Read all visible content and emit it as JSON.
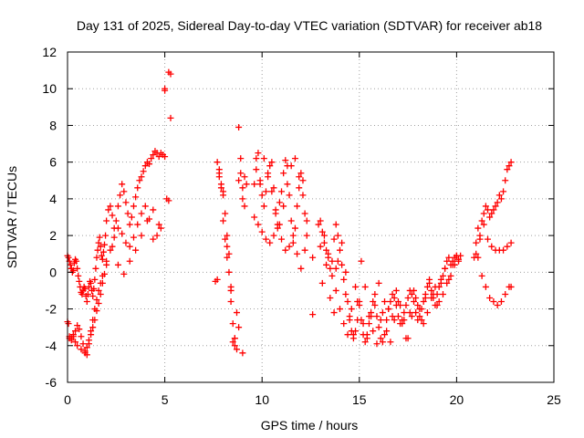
{
  "chart_data": {
    "type": "scatter",
    "title": "Day 131 of 2025, Sidereal Day-to-day VTEC variation (SDTVAR) for receiver ab18",
    "xlabel": "GPS time / hours",
    "ylabel": "SDTVAR / TECUs",
    "xlim": [
      0,
      25
    ],
    "ylim": [
      -6,
      12
    ],
    "xticks": [
      0,
      5,
      10,
      15,
      20,
      25
    ],
    "yticks": [
      -6,
      -4,
      -2,
      0,
      2,
      4,
      6,
      8,
      10,
      12
    ],
    "xtick_labels": [
      "0",
      "5",
      "10",
      "15",
      "20",
      "25"
    ],
    "ytick_labels": [
      "-6",
      "-4",
      "-2",
      "0",
      "2",
      "4",
      "6",
      "8",
      "10",
      "12"
    ],
    "grid": true,
    "marker": "+",
    "color": "#ff0000",
    "series": [
      {
        "name": "SDTVAR",
        "x": [
          0.0,
          0.05,
          0.1,
          0.15,
          0.2,
          0.25,
          0.3,
          0.35,
          0.4,
          0.45,
          0.5,
          0.55,
          0.6,
          0.65,
          0.7,
          0.75,
          0.8,
          0.85,
          0.9,
          0.95,
          1.0,
          1.05,
          1.1,
          1.15,
          1.2,
          1.25,
          1.3,
          1.35,
          1.4,
          1.45,
          1.5,
          1.55,
          1.6,
          1.65,
          1.7,
          1.75,
          1.8,
          1.85,
          1.9,
          1.95,
          2.0,
          2.1,
          2.2,
          2.3,
          2.4,
          2.5,
          2.6,
          2.7,
          2.8,
          2.9,
          3.0,
          3.1,
          3.2,
          3.3,
          3.4,
          3.5,
          3.6,
          3.7,
          3.8,
          3.9,
          4.0,
          4.1,
          4.2,
          4.3,
          4.4,
          4.5,
          4.6,
          4.7,
          4.8,
          4.9,
          5.0,
          5.1,
          5.2,
          5.3,
          0.0,
          0.1,
          0.2,
          0.3,
          0.4,
          0.5,
          0.6,
          0.7,
          0.8,
          0.9,
          1.0,
          1.1,
          1.2,
          1.3,
          1.4,
          1.5,
          1.6,
          1.7,
          1.8,
          1.9,
          2.0,
          2.2,
          2.4,
          2.6,
          2.8,
          3.0,
          3.2,
          3.4,
          3.6,
          3.8,
          4.0,
          4.2,
          4.4,
          4.6,
          4.8,
          5.0,
          5.2,
          0.05,
          0.1,
          0.2,
          0.3,
          0.4,
          0.5,
          0.7,
          0.9,
          1.0,
          1.1,
          1.2,
          1.3,
          1.4,
          1.5,
          1.6,
          1.7,
          1.8,
          2.0,
          2.3,
          2.6,
          2.9,
          3.2,
          3.5,
          3.8,
          4.1,
          4.4,
          4.7,
          5.0,
          5.3,
          7.6,
          7.7,
          7.8,
          7.9,
          8.0,
          8.1,
          8.2,
          8.3,
          8.4,
          8.5,
          8.6,
          8.7,
          8.8,
          8.9,
          9.0,
          9.1,
          9.2,
          7.7,
          7.8,
          7.9,
          8.0,
          8.1,
          8.2,
          8.3,
          8.4,
          8.5,
          8.6,
          8.7,
          8.8,
          8.9,
          9.0,
          9.1,
          7.8,
          8.0,
          8.2,
          8.4,
          8.6,
          8.8,
          9.0,
          9.6,
          9.7,
          9.8,
          9.9,
          10.0,
          10.1,
          10.2,
          10.3,
          10.4,
          10.5,
          10.6,
          10.7,
          10.8,
          10.9,
          11.0,
          11.1,
          11.2,
          11.3,
          11.4,
          11.5,
          11.6,
          11.7,
          11.8,
          11.9,
          12.0,
          12.1,
          12.2,
          12.3,
          9.6,
          9.8,
          10.0,
          10.2,
          10.4,
          10.6,
          10.8,
          11.0,
          11.2,
          11.4,
          11.6,
          11.8,
          12.0,
          12.2,
          9.7,
          9.9,
          10.1,
          10.3,
          10.5,
          10.7,
          10.9,
          11.1,
          11.3,
          11.5,
          11.7,
          11.9,
          12.1,
          12.3,
          12.6,
          12.9,
          13.0,
          13.1,
          13.2,
          13.3,
          13.4,
          13.5,
          13.6,
          13.7,
          13.8,
          13.9,
          14.0,
          14.1,
          14.2,
          14.3,
          14.4,
          14.5,
          14.6,
          14.7,
          14.8,
          14.9,
          15.0,
          15.1,
          15.2,
          15.3,
          15.4,
          15.5,
          15.6,
          15.7,
          15.8,
          15.9,
          16.0,
          16.1,
          16.2,
          16.3,
          16.4,
          16.5,
          16.6,
          16.7,
          16.8,
          16.9,
          17.0,
          17.1,
          17.2,
          17.3,
          17.4,
          17.5,
          17.6,
          17.7,
          17.8,
          17.9,
          18.0,
          18.1,
          18.2,
          18.3,
          18.4,
          18.5,
          18.6,
          18.7,
          18.8,
          18.9,
          19.0,
          19.1,
          19.2,
          19.3,
          19.4,
          19.5,
          19.6,
          19.7,
          19.8,
          19.9,
          20.0,
          20.1,
          20.2,
          13.0,
          13.2,
          13.4,
          13.6,
          13.8,
          14.0,
          14.2,
          14.4,
          14.6,
          14.8,
          15.0,
          15.2,
          15.4,
          15.6,
          15.8,
          16.0,
          16.2,
          16.4,
          16.6,
          16.8,
          17.0,
          17.2,
          17.4,
          17.6,
          17.8,
          18.0,
          18.2,
          18.4,
          18.6,
          18.8,
          19.0,
          19.2,
          19.4,
          19.6,
          19.8,
          20.0,
          13.1,
          13.3,
          13.5,
          13.7,
          13.9,
          14.1,
          14.3,
          14.5,
          14.7,
          14.9,
          15.1,
          15.3,
          15.5,
          15.7,
          15.9,
          16.1,
          16.3,
          16.5,
          16.7,
          16.9,
          17.1,
          17.3,
          17.5,
          17.7,
          17.9,
          18.1,
          18.3,
          18.5,
          18.7,
          18.9,
          19.1,
          19.3,
          19.5,
          19.7,
          19.9,
          20.1,
          20.9,
          21.0,
          21.1,
          21.2,
          21.3,
          21.4,
          21.5,
          21.6,
          21.7,
          21.8,
          21.9,
          22.0,
          22.1,
          22.2,
          22.3,
          22.4,
          22.5,
          22.6,
          22.7,
          22.8,
          21.0,
          21.2,
          21.4,
          21.6,
          21.8,
          22.0,
          22.2,
          22.4,
          22.6,
          22.8,
          21.1,
          21.3,
          21.5,
          21.7,
          21.9,
          22.1,
          22.3,
          22.5,
          22.7,
          22.8,
          12.6,
          13.8
        ],
        "y": [
          0.9,
          0.8,
          0.6,
          0.4,
          0.2,
          0.0,
          0.1,
          0.5,
          0.7,
          0.6,
          0.2,
          -0.2,
          -0.5,
          -0.8,
          -1.1,
          -1.2,
          -1.0,
          -0.8,
          -0.9,
          -1.3,
          -1.6,
          -1.2,
          -0.8,
          -0.5,
          -0.6,
          -1.0,
          -1.3,
          -0.9,
          -0.4,
          0.2,
          0.8,
          1.2,
          1.6,
          1.9,
          1.4,
          0.9,
          0.7,
          1.1,
          1.5,
          2.0,
          2.8,
          3.4,
          3.6,
          3.1,
          2.4,
          2.8,
          3.6,
          4.2,
          4.8,
          4.4,
          3.8,
          3.2,
          2.6,
          3.0,
          3.6,
          4.1,
          4.6,
          5.0,
          5.2,
          5.5,
          5.8,
          6.0,
          5.9,
          6.2,
          6.4,
          6.6,
          6.5,
          6.3,
          6.5,
          6.4,
          6.3,
          4.0,
          3.9,
          8.4,
          -2.7,
          -3.6,
          -3.7,
          -3.5,
          -3.2,
          -2.9,
          -3.1,
          -3.5,
          -3.9,
          -4.3,
          -4.5,
          -3.9,
          -3.4,
          -3.0,
          -2.6,
          -2.1,
          -1.7,
          -1.2,
          -0.6,
          -0.1,
          0.4,
          1.2,
          1.9,
          2.4,
          2.1,
          1.6,
          1.4,
          1.9,
          2.6,
          3.2,
          3.6,
          2.9,
          1.8,
          2.0,
          2.4,
          10.0,
          10.9,
          -2.8,
          -3.5,
          -3.6,
          -3.4,
          -3.8,
          -4.0,
          -4.2,
          -4.4,
          -4.1,
          -3.7,
          -3.2,
          -2.6,
          -2.0,
          -1.5,
          -1.0,
          -0.6,
          -0.2,
          0.6,
          1.4,
          0.4,
          -0.1,
          0.6,
          1.2,
          2.0,
          2.8,
          3.4,
          2.6,
          9.9,
          10.8,
          -0.5,
          6.0,
          5.6,
          4.6,
          4.2,
          3.2,
          2.0,
          1.0,
          -1.0,
          -3.8,
          -4.0,
          -2.2,
          5.0,
          5.4,
          4.6,
          5.2,
          4.8,
          -0.4,
          5.4,
          4.8,
          2.8,
          1.8,
          0.8,
          0.0,
          -1.6,
          -2.8,
          -3.6,
          -4.2,
          -3.0,
          6.2,
          4.0,
          3.6,
          5.2,
          4.4,
          1.4,
          -0.8,
          -3.6,
          7.9,
          -4.4,
          4.8,
          6.2,
          6.5,
          5.0,
          4.2,
          3.6,
          4.4,
          5.2,
          5.8,
          6.0,
          4.6,
          3.4,
          2.6,
          3.8,
          4.4,
          5.4,
          6.1,
          5.8,
          4.2,
          2.8,
          1.6,
          2.4,
          3.6,
          4.6,
          5.4,
          5.0,
          3.2,
          2.0,
          3.0,
          2.6,
          2.2,
          1.8,
          1.6,
          2.0,
          2.4,
          1.8,
          1.2,
          1.4,
          2.0,
          1.0,
          0.2,
          1.2,
          5.6,
          4.8,
          6.2,
          5.4,
          4.4,
          3.2,
          2.6,
          3.6,
          4.8,
          5.8,
          6.2,
          5.2,
          4.2,
          2.8,
          0.8,
          2.6,
          2.8,
          2.2,
          1.6,
          1.2,
          0.8,
          0.2,
          0.6,
          1.8,
          2.6,
          2.0,
          1.2,
          0.4,
          -0.4,
          -1.2,
          -1.6,
          -2.4,
          -3.2,
          -3.6,
          -3.2,
          -2.6,
          -1.8,
          -2.6,
          -3.4,
          -3.8,
          -3.4,
          -2.8,
          -2.2,
          -1.6,
          -1.8,
          -2.4,
          -3.0,
          -3.6,
          -3.8,
          -3.4,
          -2.6,
          -2.0,
          -1.6,
          -1.2,
          -1.4,
          -1.8,
          -2.4,
          -2.8,
          -2.6,
          -2.2,
          -1.8,
          -1.4,
          -1.0,
          -1.2,
          -1.6,
          -2.2,
          -2.6,
          -2.4,
          -2.0,
          -1.6,
          -1.2,
          -0.8,
          -0.6,
          -1.0,
          -1.4,
          -1.8,
          -1.2,
          -0.8,
          -0.4,
          -0.2,
          0.2,
          0.6,
          0.8,
          0.4,
          0.6,
          0.8,
          0.9,
          0.7,
          0.9,
          1.4,
          2.0,
          1.0,
          -0.2,
          -1.0,
          -2.0,
          -2.8,
          -3.4,
          -2.0,
          -0.8,
          -1.6,
          -2.8,
          -3.6,
          -2.4,
          -1.2,
          -0.6,
          -2.2,
          -3.2,
          -3.8,
          -2.6,
          -1.6,
          -2.8,
          -3.6,
          -2.2,
          -1.0,
          -1.8,
          -2.6,
          -1.4,
          -0.4,
          -1.2,
          -1.8,
          -0.6,
          0.2,
          -0.4,
          0.4,
          0.9,
          -0.6,
          0.4,
          -1.4,
          -2.2,
          0.6,
          1.6,
          0.0,
          -2.6,
          -3.4,
          -1.6,
          0.6,
          -0.8,
          -2.4,
          -3.2,
          -3.9,
          -2.6,
          -1.6,
          -2.0,
          -2.4,
          -1.0,
          -1.8,
          -2.6,
          -3.6,
          -2.4,
          -1.4,
          -2.0,
          -2.8,
          -2.2,
          -1.4,
          -0.8,
          -1.6,
          -1.2,
          -0.6,
          -0.2,
          0.4,
          0.6,
          0.8,
          1.6,
          2.4,
          1.8,
          2.8,
          3.2,
          3.6,
          3.4,
          3.0,
          3.2,
          3.4,
          3.6,
          3.8,
          4.2,
          4.0,
          4.4,
          5.0,
          5.6,
          5.8,
          6.0,
          1.0,
          2.0,
          2.6,
          1.8,
          1.4,
          1.2,
          1.2,
          1.2,
          1.4,
          1.6,
          0.8,
          -0.2,
          -0.8,
          -1.4,
          -1.6,
          -1.8,
          -1.6,
          -1.2,
          -0.8,
          -0.8,
          -2.3,
          0.2
        ]
      }
    ]
  }
}
